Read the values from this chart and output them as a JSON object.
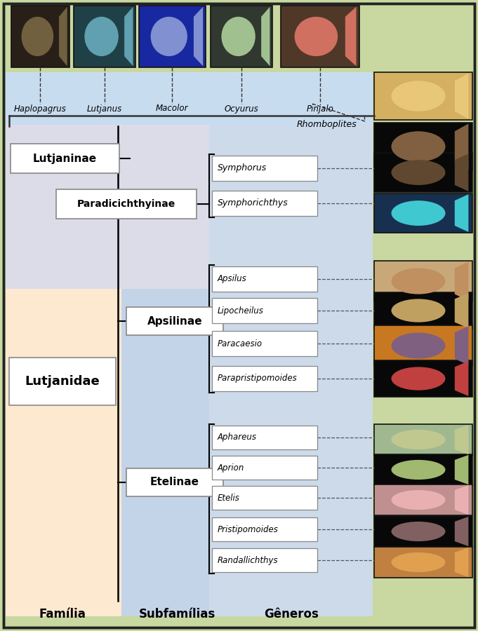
{
  "bg_outer": "#c8d8a0",
  "bg_lutjaninae": "#dcdce8",
  "bg_lutjanidae": "#fde8d0",
  "bg_blue_top": "#c8dcf0",
  "bg_genera": "#ccdaea",
  "bg_subfam_lower": "#c4d4e8",
  "bottom_labels": [
    "Família",
    "Subfamílias",
    "Gêneros"
  ],
  "top_genera": [
    "Haplopagrus",
    "Lutjanus",
    "Macolor",
    "Ocyurus",
    "Pinjalo"
  ],
  "rhomboplites": "Rhomboplites",
  "paradicichthyinae_genera": [
    "Symphorus",
    "Symphorichthys"
  ],
  "apsilinae_genera": [
    "Apsilus",
    "Lipocheilus",
    "Paracaesio",
    "Parapristipomoides"
  ],
  "etelinae_genera": [
    "Aphareus",
    "Aprion",
    "Etelis",
    "Pristipomoides",
    "Randallichthys"
  ],
  "fish_colors": {
    "rhomboplites1_bg": "#d4b060",
    "rhomboplites1_fish": "#e8c878",
    "rhomboplites2_bg": "#080808",
    "rhomboplites2_fish": "#806040",
    "symphorus_bg": "#080808",
    "symphorus_fish": "#604830",
    "symphorichthys_bg": "#183050",
    "symphorichthys_fish": "#40c8d0",
    "apsilus_bg": "#c8a878",
    "apsilus_fish": "#c09060",
    "lipocheilus_bg": "#080808",
    "lipocheilus_fish": "#c0a060",
    "paracaesio_bg": "#c87820",
    "paracaesio_fish": "#806080",
    "parapristipomoides_bg": "#080808",
    "parapristipomoides_fish": "#c04040",
    "aphareus_bg": "#a0b890",
    "aphareus_fish": "#c0c890",
    "aprion_bg": "#080808",
    "aprion_fish": "#a0b870",
    "etelis_bg": "#c09090",
    "etelis_fish": "#e8b0b0",
    "pristipomoides_bg": "#080808",
    "pristipomoides_fish": "#806060",
    "randallichthys_bg": "#c08040",
    "randallichthys_fish": "#e0a050"
  },
  "top_fish_colors": [
    {
      "bg": "#282018",
      "fish": "#706040"
    },
    {
      "bg": "#204048",
      "fish": "#60a0b0"
    },
    {
      "bg": "#1828a0",
      "fish": "#8090d0"
    },
    {
      "bg": "#303830",
      "fish": "#a0c090"
    },
    {
      "bg": "#503828",
      "fish": "#d07060"
    }
  ]
}
